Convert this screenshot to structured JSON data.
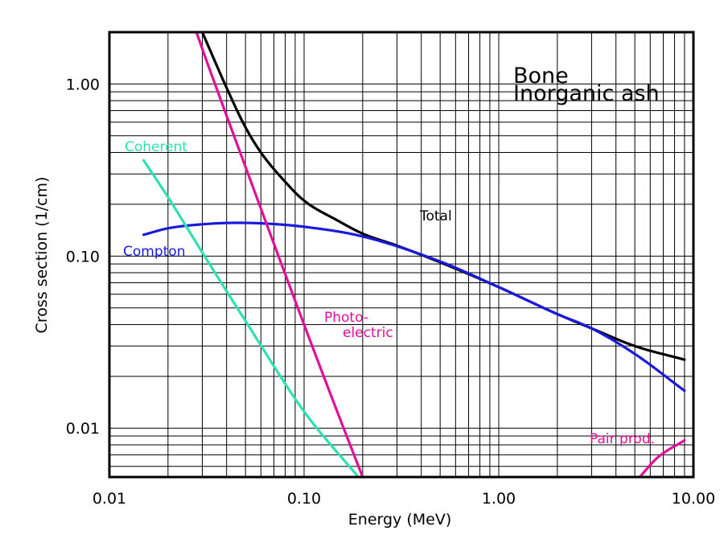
{
  "chart_data": {
    "type": "line",
    "title_lines": [
      "Bone",
      "Inorganic ash"
    ],
    "xlabel": "Energy (MeV)",
    "ylabel": "Cross section (1/cm)",
    "x_scale": "log",
    "y_scale": "log",
    "xlim": [
      0.01,
      10.0
    ],
    "ylim": [
      0.0052,
      2.0
    ],
    "grid": true,
    "x_ticks": [
      {
        "value": 0.01,
        "label": "0.01"
      },
      {
        "value": 0.1,
        "label": "0.10"
      },
      {
        "value": 1.0,
        "label": "1.00"
      },
      {
        "value": 10.0,
        "label": "10.00"
      }
    ],
    "y_ticks": [
      {
        "value": 0.01,
        "label": "0.01"
      },
      {
        "value": 0.1,
        "label": "0.10"
      },
      {
        "value": 1.0,
        "label": "1.00"
      }
    ],
    "series": [
      {
        "name": "Total",
        "color": "#000000",
        "x": [
          0.03,
          0.04,
          0.05,
          0.06,
          0.08,
          0.1,
          0.15,
          0.2,
          0.3,
          0.5,
          1.0,
          2.0,
          3.0,
          5.0,
          9.0
        ],
        "y": [
          2.0,
          0.95,
          0.56,
          0.4,
          0.27,
          0.21,
          0.16,
          0.135,
          0.115,
          0.092,
          0.066,
          0.046,
          0.038,
          0.03,
          0.025
        ]
      },
      {
        "name": "Compton",
        "color": "#1a1adc",
        "x": [
          0.015,
          0.02,
          0.03,
          0.045,
          0.06,
          0.1,
          0.2,
          0.5,
          1.0,
          2.0,
          3.0,
          5.0,
          9.0
        ],
        "y": [
          0.133,
          0.145,
          0.153,
          0.156,
          0.155,
          0.148,
          0.13,
          0.093,
          0.066,
          0.046,
          0.038,
          0.027,
          0.0165
        ]
      },
      {
        "name": "Coherent",
        "color": "#30e0b0",
        "x": [
          0.015,
          0.02,
          0.03,
          0.05,
          0.1,
          0.19
        ],
        "y": [
          0.36,
          0.22,
          0.105,
          0.042,
          0.0125,
          0.0052
        ]
      },
      {
        "name": "Photo-electric",
        "color": "#e0109b",
        "x": [
          0.028,
          0.03,
          0.05,
          0.1,
          0.15,
          0.2
        ],
        "y": [
          2.0,
          1.6,
          0.33,
          0.04,
          0.012,
          0.0052
        ]
      },
      {
        "name": "Pair prod.",
        "color": "#e0109b",
        "x": [
          5.3,
          6.5,
          9.0
        ],
        "y": [
          0.0052,
          0.0067,
          0.0085
        ]
      }
    ],
    "annotations": [
      {
        "text": "Total",
        "color": "#000000"
      },
      {
        "text": "Compton",
        "color": "#1a1adc"
      },
      {
        "text": "Coherent",
        "color": "#30e0b0"
      },
      {
        "text": "Photo-",
        "color": "#e0109b"
      },
      {
        "text": "electric",
        "color": "#e0109b"
      },
      {
        "text": "Pair prod.",
        "color": "#e0109b"
      }
    ]
  }
}
